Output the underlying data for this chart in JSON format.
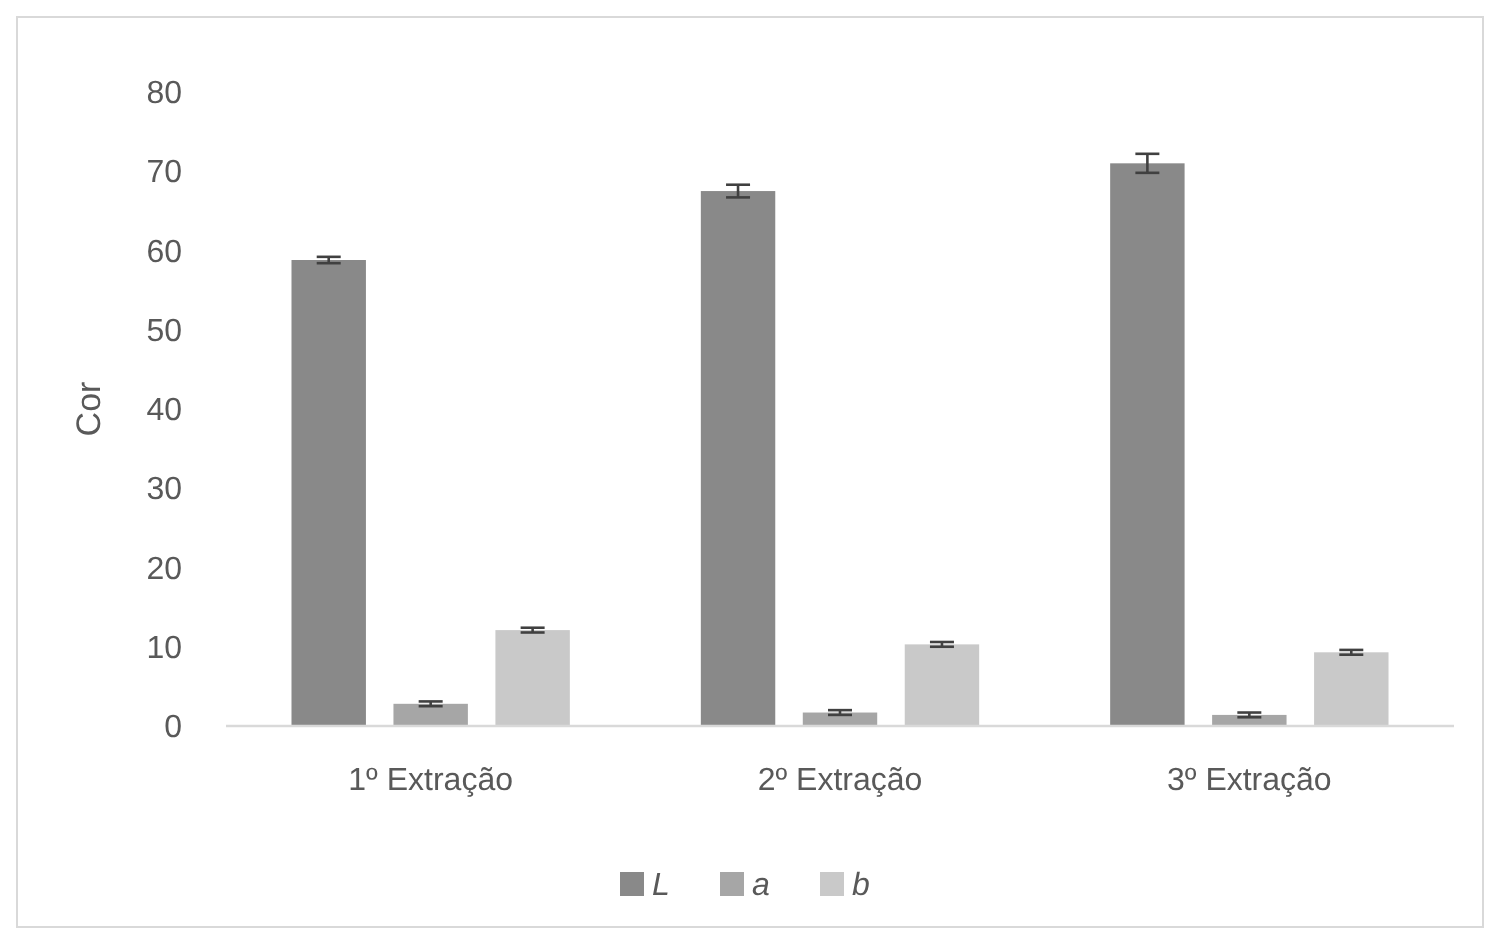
{
  "chart_data": {
    "type": "bar",
    "ylabel": "Cor",
    "categories": [
      "1º Extração",
      "2º Extração",
      "3º Extração"
    ],
    "series": [
      {
        "name": "L",
        "color": "#898989",
        "values": [
          58.8,
          67.5,
          71
        ],
        "errors": [
          0.4,
          0.8,
          1.2
        ]
      },
      {
        "name": "a",
        "color": "#a6a6a6",
        "values": [
          2.8,
          1.7,
          1.4
        ],
        "errors": [
          0.3,
          0.3,
          0.3
        ]
      },
      {
        "name": "b",
        "color": "#c9c9c9",
        "values": [
          12.1,
          10.3,
          9.3
        ],
        "errors": [
          0.3,
          0.3,
          0.3
        ]
      }
    ],
    "ylim": [
      0,
      80
    ],
    "yticks": [
      0,
      10,
      20,
      30,
      40,
      50,
      60,
      70,
      80
    ],
    "grid": false,
    "legend": "bottom"
  }
}
